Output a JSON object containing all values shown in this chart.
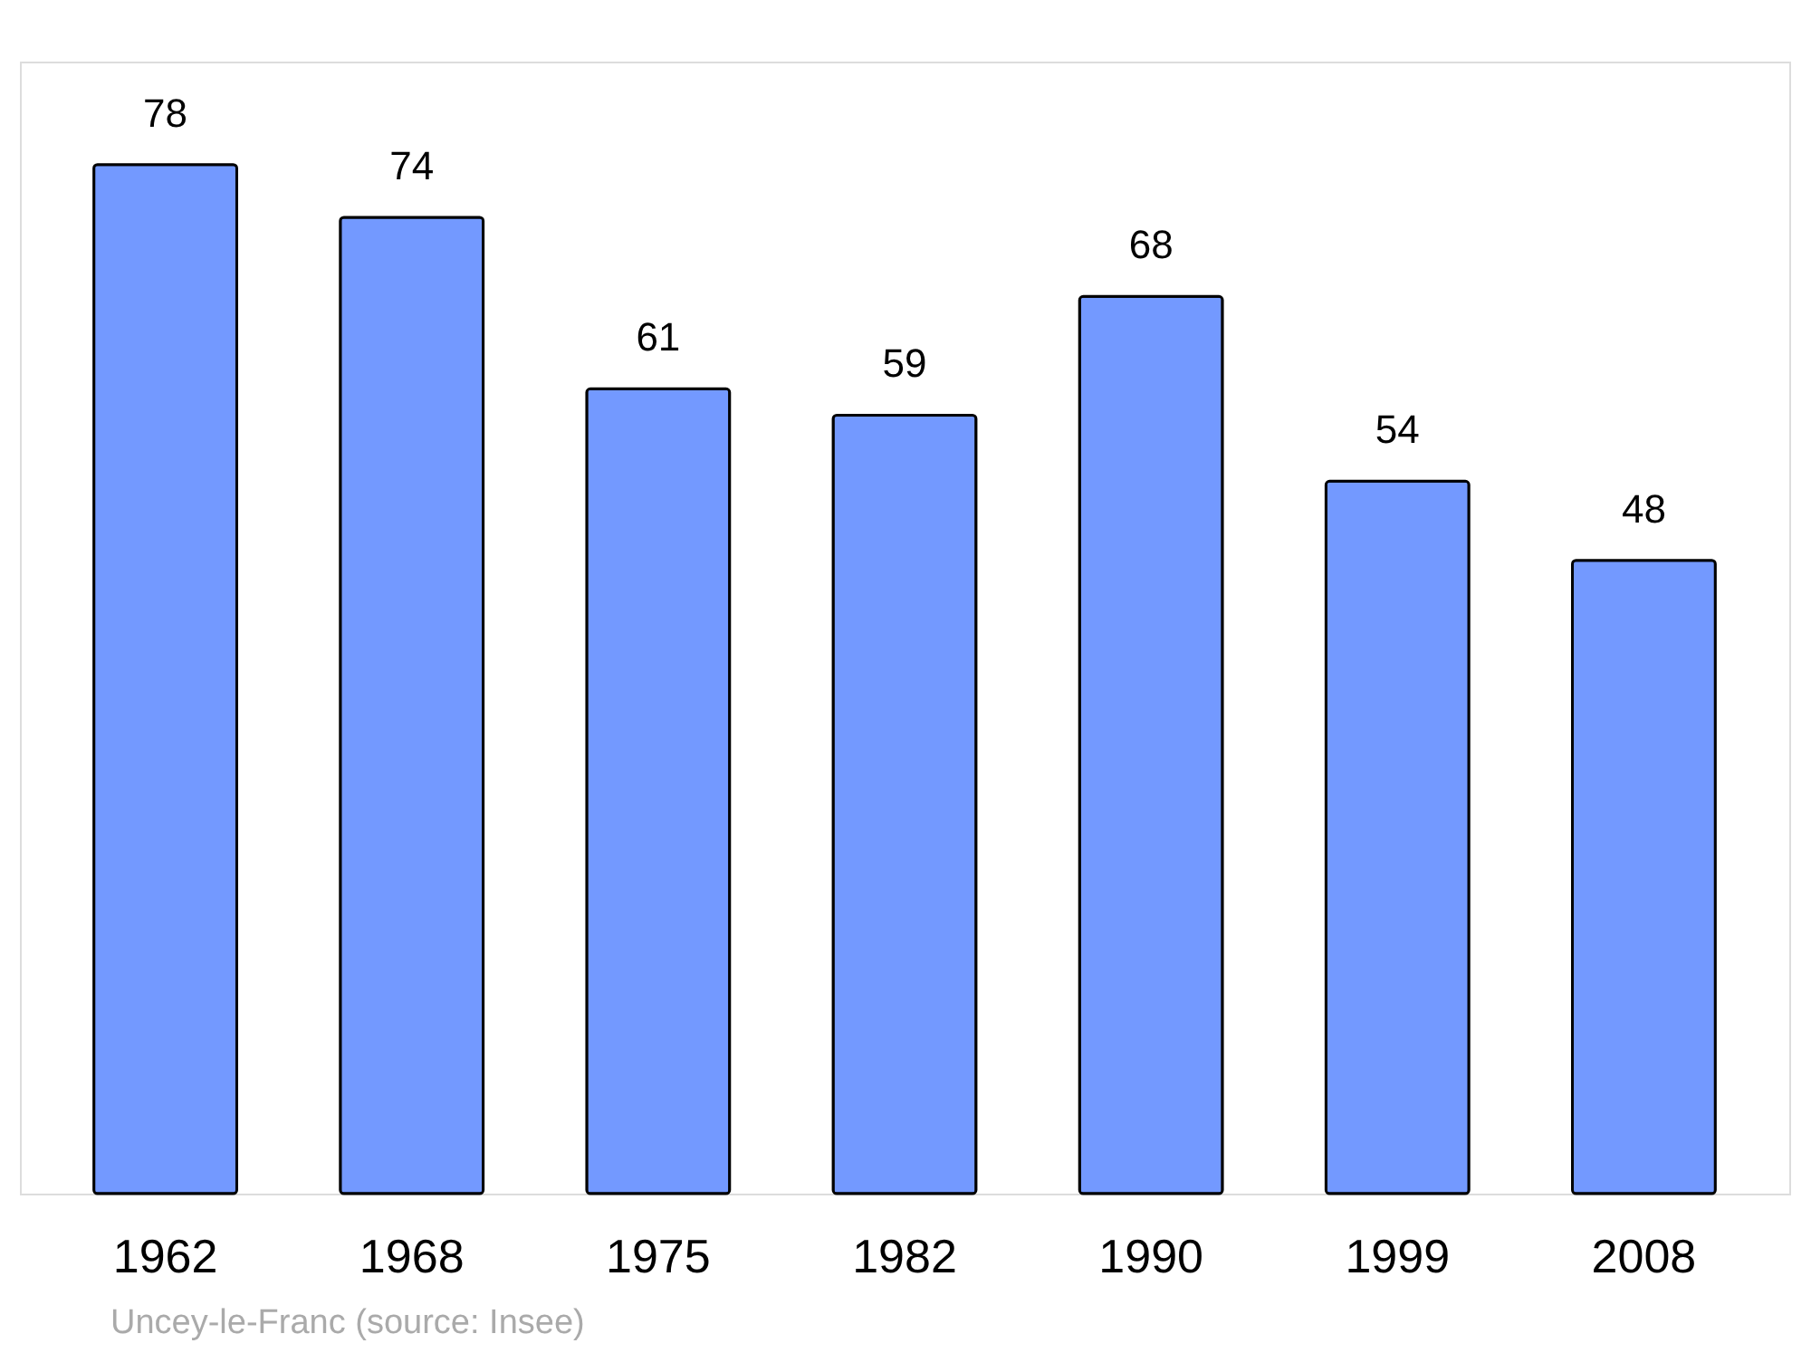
{
  "chart_data": {
    "type": "bar",
    "categories": [
      "1962",
      "1968",
      "1975",
      "1982",
      "1990",
      "1999",
      "2008"
    ],
    "values": [
      78,
      74,
      61,
      59,
      68,
      54,
      48
    ],
    "color": "#7399ff",
    "data_labels": true,
    "annotations": [
      "Uncey-le-Franc    (source: Insee)"
    ]
  }
}
